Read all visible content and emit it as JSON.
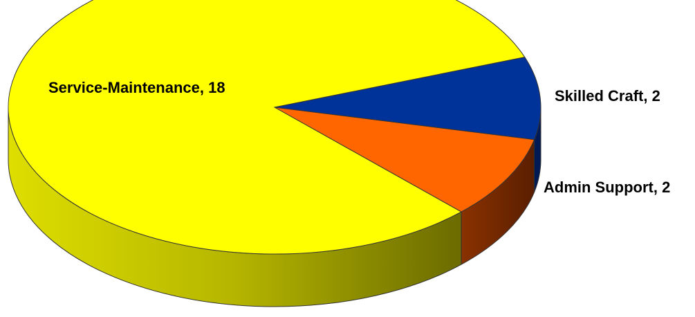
{
  "chart_data": {
    "type": "pie",
    "style": "3d",
    "slices": [
      {
        "label": "Service-Maintenance",
        "value": 18,
        "text": "Service-Maintenance, 18",
        "color": "#ffff00",
        "side_color": "#b3b300"
      },
      {
        "label": "Skilled Craft",
        "value": 2,
        "text": "Skilled Craft, 2",
        "color": "#003399",
        "side_color": "#001a55"
      },
      {
        "label": "Admin Support",
        "value": 2,
        "text": "Admin Support, 2",
        "color": "#ff6600",
        "side_color": "#7a2a00"
      }
    ],
    "legend": "none",
    "data_labels": "category, value"
  }
}
